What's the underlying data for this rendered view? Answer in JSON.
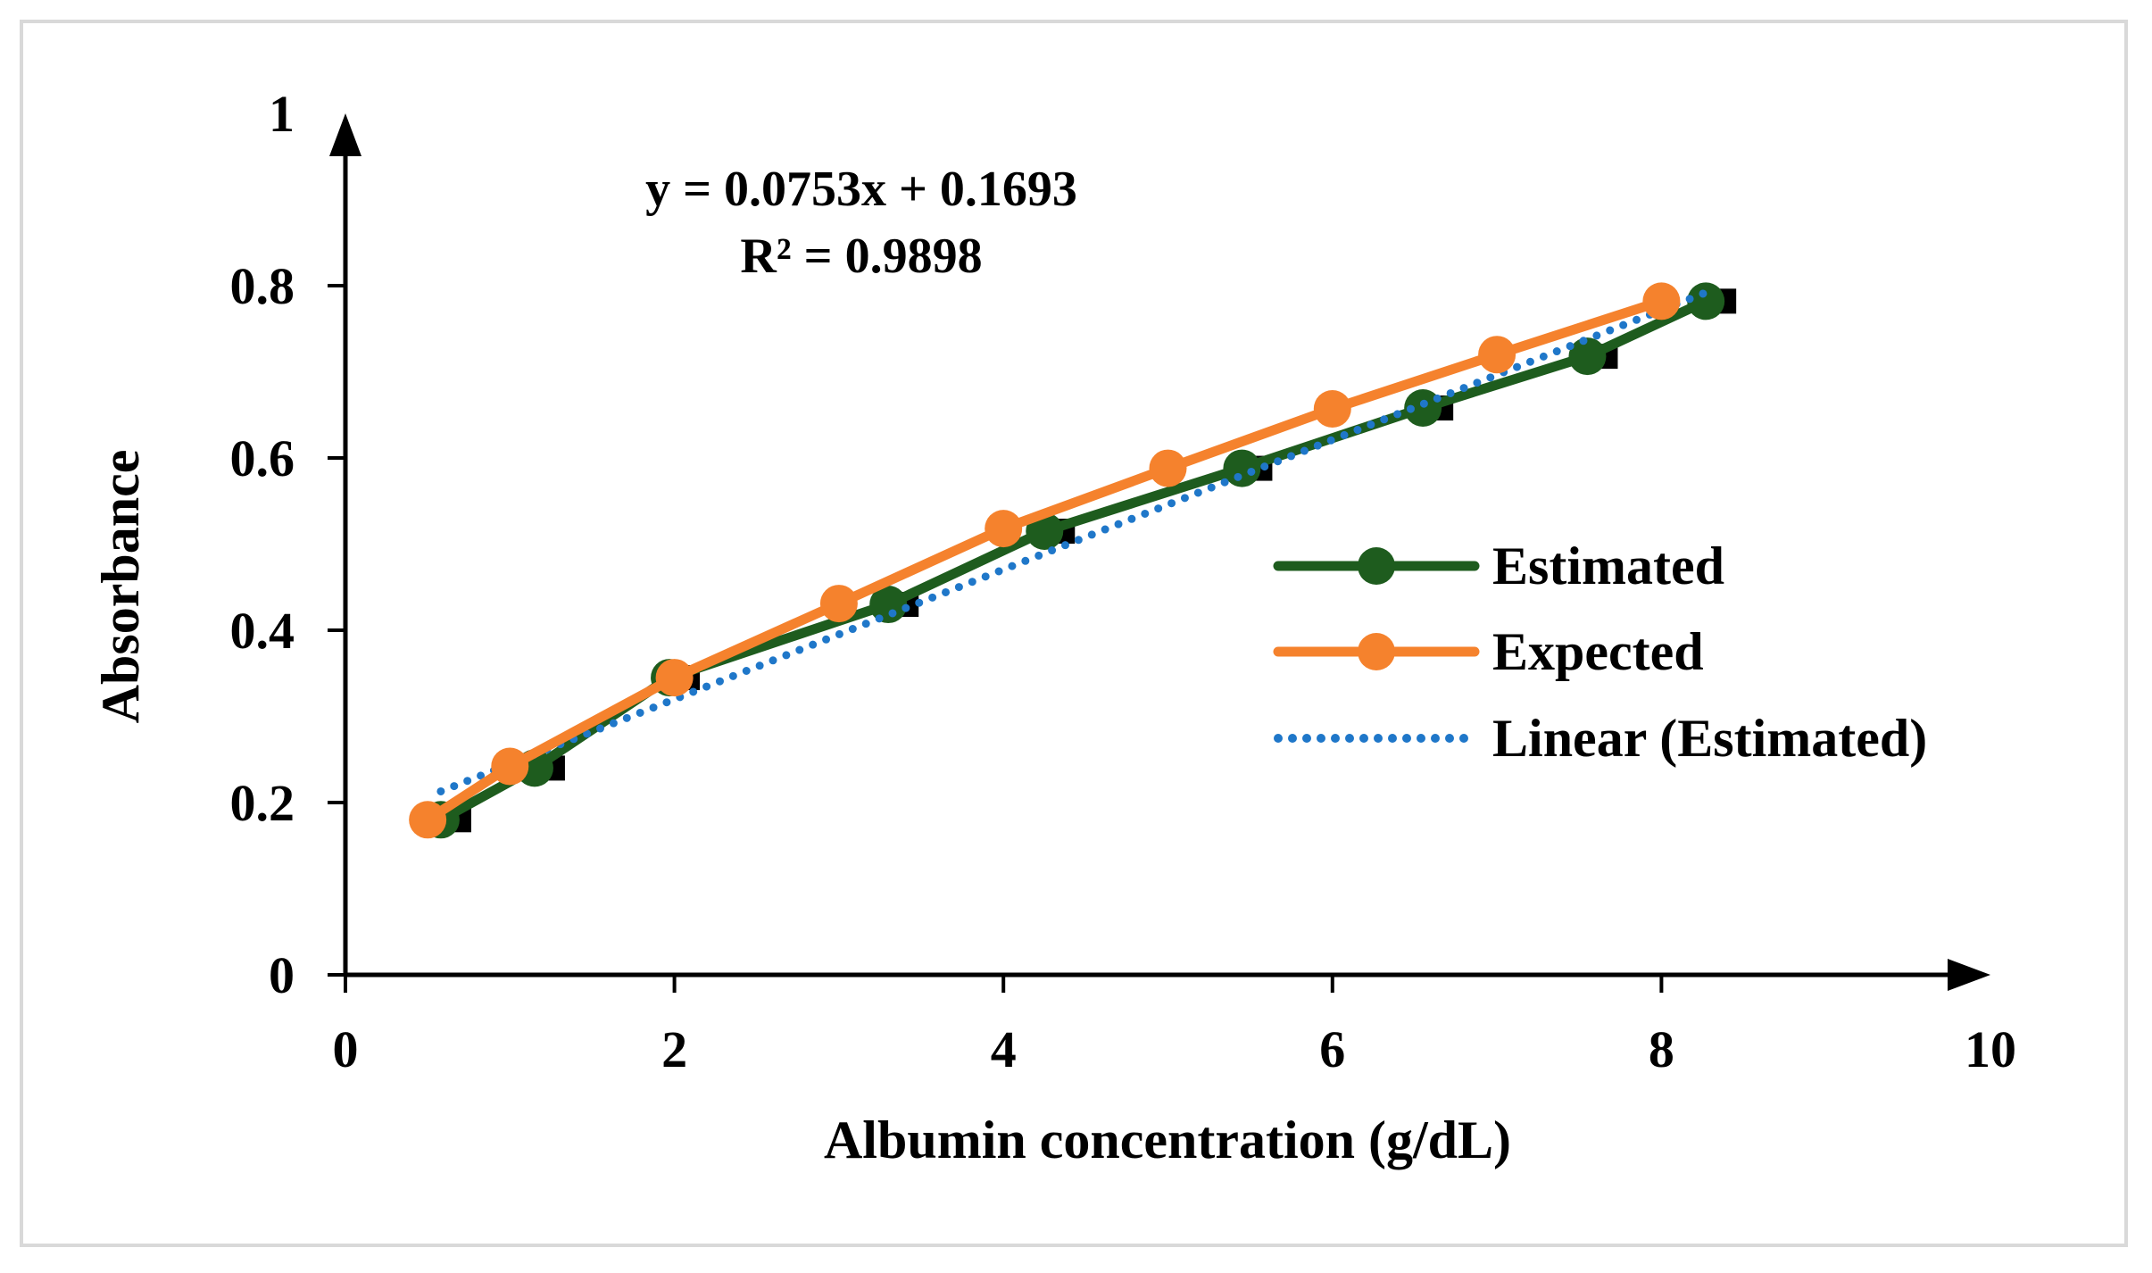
{
  "chart_data": {
    "type": "line",
    "title": "",
    "xlabel": "Albumin concentration (g/dL)",
    "ylabel": "Absorbance",
    "xlim": [
      0,
      10
    ],
    "ylim": [
      0,
      1
    ],
    "xticks": [
      0,
      2,
      4,
      6,
      8,
      10
    ],
    "yticks": [
      0,
      0.2,
      0.4,
      0.6,
      0.8,
      1
    ],
    "xtick_labels": [
      "0",
      "2",
      "4",
      "6",
      "8",
      "10"
    ],
    "ytick_labels": [
      "0",
      "0.2",
      "0.4",
      "0.6",
      "0.8",
      "1"
    ],
    "grid": false,
    "legend_position": "right",
    "series": [
      {
        "name": "Estimated",
        "color": "#1e5c1e",
        "style": "solid-marker",
        "error_bars": true,
        "points": [
          {
            "x": 0.58,
            "y": 0.18
          },
          {
            "x": 1.15,
            "y": 0.24
          },
          {
            "x": 1.97,
            "y": 0.345
          },
          {
            "x": 3.3,
            "y": 0.43
          },
          {
            "x": 4.25,
            "y": 0.515
          },
          {
            "x": 5.45,
            "y": 0.588
          },
          {
            "x": 6.55,
            "y": 0.658
          },
          {
            "x": 7.55,
            "y": 0.718
          },
          {
            "x": 8.27,
            "y": 0.782
          }
        ]
      },
      {
        "name": "Expected",
        "color": "#f5822d",
        "style": "solid-marker",
        "points": [
          {
            "x": 0.5,
            "y": 0.18
          },
          {
            "x": 1.0,
            "y": 0.242
          },
          {
            "x": 2.0,
            "y": 0.345
          },
          {
            "x": 3.0,
            "y": 0.431
          },
          {
            "x": 4.0,
            "y": 0.518
          },
          {
            "x": 5.0,
            "y": 0.588
          },
          {
            "x": 6.0,
            "y": 0.657
          },
          {
            "x": 7.0,
            "y": 0.72
          },
          {
            "x": 8.0,
            "y": 0.782
          }
        ]
      },
      {
        "name": "Linear (Estimated)",
        "color": "#1f77c9",
        "style": "dotted",
        "slope": 0.0753,
        "intercept": 0.1693,
        "x_range": [
          0.58,
          8.27
        ]
      }
    ],
    "annotations": {
      "equation": "y = 0.0753x + 0.1693",
      "r_squared": "R² = 0.9898"
    }
  }
}
